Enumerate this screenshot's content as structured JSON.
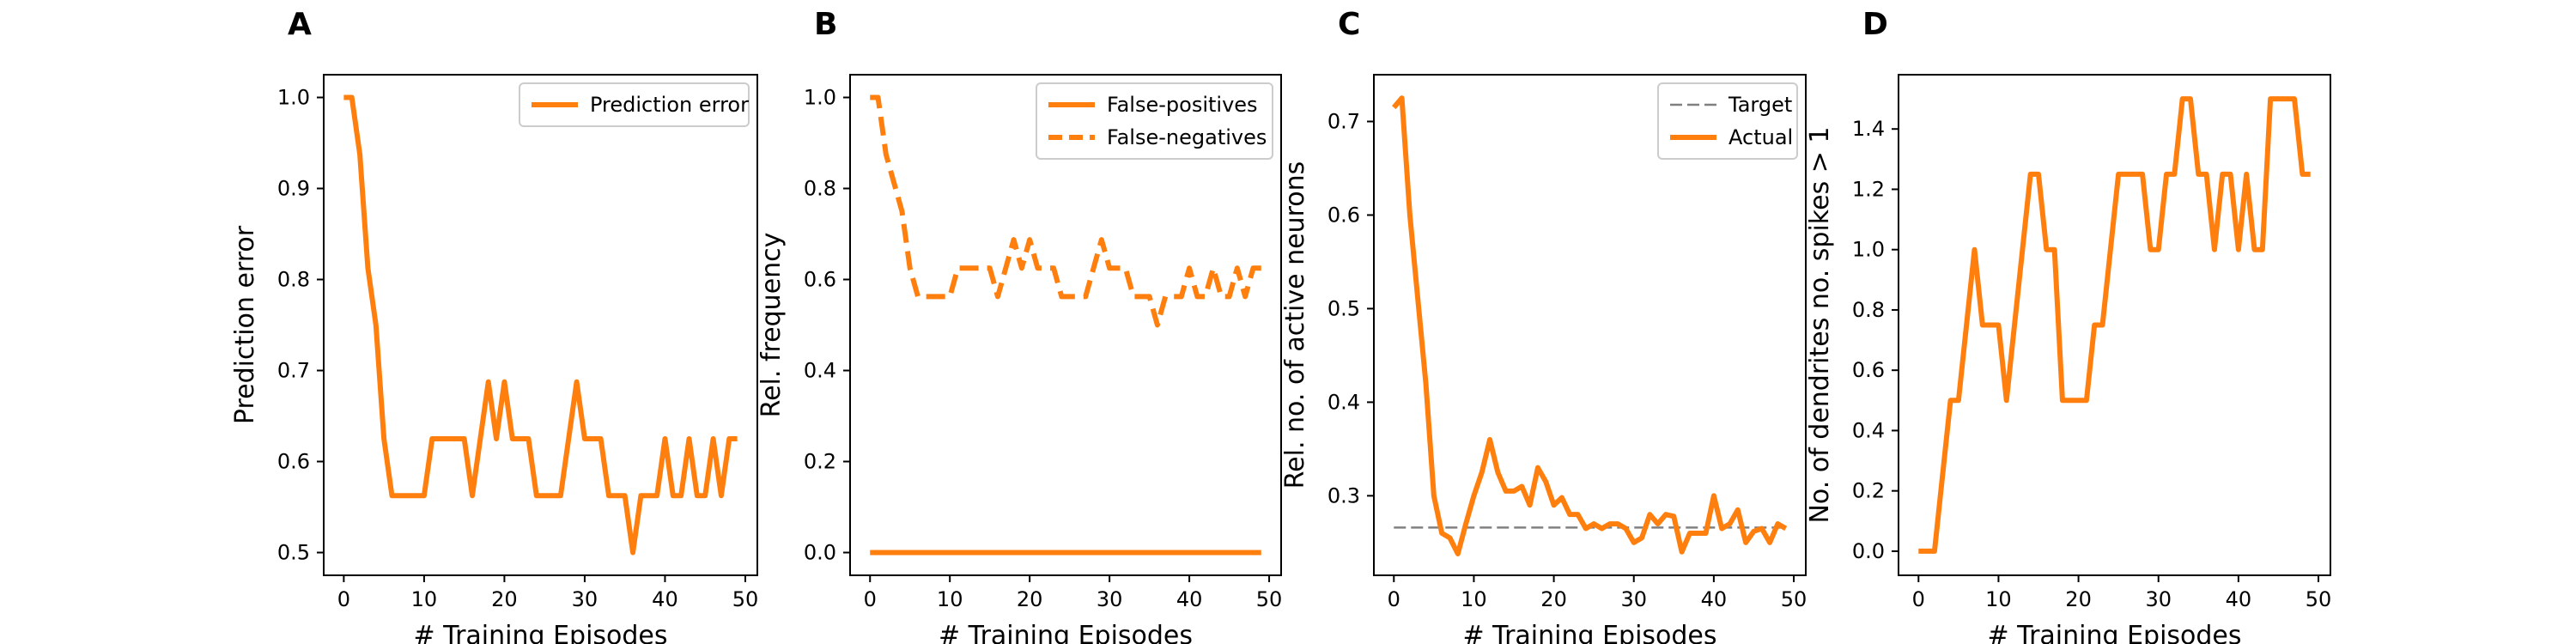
{
  "chart_data": [
    {
      "type": "line",
      "panel_label": "A",
      "xlabel": "# Training Episodes",
      "ylabel": "Prediction error",
      "xlim": [
        -2.5,
        51.5
      ],
      "ylim": [
        0.475,
        1.025
      ],
      "xticks": [
        0,
        10,
        20,
        30,
        40,
        50
      ],
      "yticks": [
        0.5,
        0.6,
        0.7,
        0.8,
        0.9,
        1.0
      ],
      "ytick_labels": [
        "0.5",
        "0.6",
        "0.7",
        "0.8",
        "0.9",
        "1.0"
      ],
      "grid": false,
      "legend_position": "top-right",
      "series": [
        {
          "name": "Prediction error",
          "color": "#ff7f0e",
          "style": "solid",
          "x": [
            0,
            1,
            2,
            3,
            4,
            5,
            6,
            7,
            8,
            9,
            10,
            11,
            12,
            13,
            14,
            15,
            16,
            17,
            18,
            19,
            20,
            21,
            22,
            23,
            24,
            25,
            26,
            27,
            28,
            29,
            30,
            31,
            32,
            33,
            34,
            35,
            36,
            37,
            38,
            39,
            40,
            41,
            42,
            43,
            44,
            45,
            46,
            47,
            48,
            49
          ],
          "y": [
            1.0,
            1.0,
            0.9375,
            0.8125,
            0.75,
            0.625,
            0.5625,
            0.5625,
            0.5625,
            0.5625,
            0.5625,
            0.625,
            0.625,
            0.625,
            0.625,
            0.625,
            0.5625,
            0.625,
            0.6875,
            0.625,
            0.6875,
            0.625,
            0.625,
            0.625,
            0.5625,
            0.5625,
            0.5625,
            0.5625,
            0.625,
            0.6875,
            0.625,
            0.625,
            0.625,
            0.5625,
            0.5625,
            0.5625,
            0.5,
            0.5625,
            0.5625,
            0.5625,
            0.625,
            0.5625,
            0.5625,
            0.625,
            0.5625,
            0.5625,
            0.625,
            0.5625,
            0.625,
            0.625
          ]
        }
      ]
    },
    {
      "type": "line",
      "panel_label": "B",
      "xlabel": "# Training Episodes",
      "ylabel": "Rel. frequency",
      "xlim": [
        -2.5,
        51.5
      ],
      "ylim": [
        -0.05,
        1.05
      ],
      "xticks": [
        0,
        10,
        20,
        30,
        40,
        50
      ],
      "yticks": [
        0.0,
        0.2,
        0.4,
        0.6,
        0.8,
        1.0
      ],
      "ytick_labels": [
        "0.0",
        "0.2",
        "0.4",
        "0.6",
        "0.8",
        "1.0"
      ],
      "grid": false,
      "legend_position": "top-right",
      "series": [
        {
          "name": "False-positives",
          "color": "#ff7f0e",
          "style": "solid",
          "x": [
            0,
            1,
            2,
            3,
            4,
            5,
            6,
            7,
            8,
            9,
            10,
            11,
            12,
            13,
            14,
            15,
            16,
            17,
            18,
            19,
            20,
            21,
            22,
            23,
            24,
            25,
            26,
            27,
            28,
            29,
            30,
            31,
            32,
            33,
            34,
            35,
            36,
            37,
            38,
            39,
            40,
            41,
            42,
            43,
            44,
            45,
            46,
            47,
            48,
            49
          ],
          "y": [
            0,
            0,
            0,
            0,
            0,
            0,
            0,
            0,
            0,
            0,
            0,
            0,
            0,
            0,
            0,
            0,
            0,
            0,
            0,
            0,
            0,
            0,
            0,
            0,
            0,
            0,
            0,
            0,
            0,
            0,
            0,
            0,
            0,
            0,
            0,
            0,
            0,
            0,
            0,
            0,
            0,
            0,
            0,
            0,
            0,
            0,
            0,
            0,
            0,
            0
          ]
        },
        {
          "name": "False-negatives",
          "color": "#ff7f0e",
          "style": "dashed",
          "x": [
            0,
            1,
            2,
            3,
            4,
            5,
            6,
            7,
            8,
            9,
            10,
            11,
            12,
            13,
            14,
            15,
            16,
            17,
            18,
            19,
            20,
            21,
            22,
            23,
            24,
            25,
            26,
            27,
            28,
            29,
            30,
            31,
            32,
            33,
            34,
            35,
            36,
            37,
            38,
            39,
            40,
            41,
            42,
            43,
            44,
            45,
            46,
            47,
            48,
            49
          ],
          "y": [
            1.0,
            1.0,
            0.875,
            0.8125,
            0.75,
            0.625,
            0.5625,
            0.5625,
            0.5625,
            0.5625,
            0.5625,
            0.625,
            0.625,
            0.625,
            0.625,
            0.625,
            0.5625,
            0.625,
            0.6875,
            0.625,
            0.6875,
            0.625,
            0.625,
            0.625,
            0.5625,
            0.5625,
            0.5625,
            0.5625,
            0.625,
            0.6875,
            0.625,
            0.625,
            0.625,
            0.5625,
            0.5625,
            0.5625,
            0.5,
            0.5625,
            0.5625,
            0.5625,
            0.625,
            0.5625,
            0.5625,
            0.625,
            0.5625,
            0.5625,
            0.625,
            0.5625,
            0.625,
            0.625
          ]
        }
      ]
    },
    {
      "type": "line",
      "panel_label": "C",
      "xlabel": "# Training Episodes",
      "ylabel": "Rel. no. of active neurons",
      "xlim": [
        -2.5,
        51.5
      ],
      "ylim": [
        0.215,
        0.75
      ],
      "xticks": [
        0,
        10,
        20,
        30,
        40,
        50
      ],
      "yticks": [
        0.3,
        0.4,
        0.5,
        0.6,
        0.7
      ],
      "ytick_labels": [
        "0.3",
        "0.4",
        "0.5",
        "0.6",
        "0.7"
      ],
      "grid": false,
      "legend_position": "top-right",
      "series": [
        {
          "name": "Target",
          "color": "#808080",
          "style": "dashed",
          "x": [
            0,
            49
          ],
          "y": [
            0.266,
            0.266
          ]
        },
        {
          "name": "Actual",
          "color": "#ff7f0e",
          "style": "solid",
          "x": [
            0,
            1,
            2,
            3,
            4,
            5,
            6,
            7,
            8,
            9,
            10,
            11,
            12,
            13,
            14,
            15,
            16,
            17,
            18,
            19,
            20,
            21,
            22,
            23,
            24,
            25,
            26,
            27,
            28,
            29,
            30,
            31,
            32,
            33,
            34,
            35,
            36,
            37,
            38,
            39,
            40,
            41,
            42,
            43,
            44,
            45,
            46,
            47,
            48,
            49
          ],
          "y": [
            0.715,
            0.725,
            0.6,
            0.51,
            0.42,
            0.3,
            0.26,
            0.255,
            0.238,
            0.27,
            0.3,
            0.325,
            0.36,
            0.325,
            0.305,
            0.305,
            0.31,
            0.29,
            0.33,
            0.315,
            0.29,
            0.298,
            0.28,
            0.28,
            0.265,
            0.27,
            0.265,
            0.27,
            0.27,
            0.265,
            0.25,
            0.255,
            0.28,
            0.27,
            0.28,
            0.278,
            0.24,
            0.26,
            0.26,
            0.26,
            0.3,
            0.265,
            0.27,
            0.285,
            0.25,
            0.262,
            0.265,
            0.25,
            0.27,
            0.265
          ]
        }
      ]
    },
    {
      "type": "line",
      "panel_label": "D",
      "xlabel": "# Training Episodes",
      "ylabel": "No. of dendrites no. spikes > 1",
      "xlim": [
        -2.5,
        51.5
      ],
      "ylim": [
        -0.08,
        1.58
      ],
      "xticks": [
        0,
        10,
        20,
        30,
        40,
        50
      ],
      "yticks": [
        0.0,
        0.2,
        0.4,
        0.6,
        0.8,
        1.0,
        1.2,
        1.4
      ],
      "ytick_labels": [
        "0.0",
        "0.2",
        "0.4",
        "0.6",
        "0.8",
        "1.0",
        "1.2",
        "1.4"
      ],
      "grid": false,
      "series": [
        {
          "color": "#ff7f0e",
          "style": "solid",
          "x": [
            0,
            1,
            2,
            3,
            4,
            5,
            6,
            7,
            8,
            9,
            10,
            11,
            12,
            13,
            14,
            15,
            16,
            17,
            18,
            19,
            20,
            21,
            22,
            23,
            24,
            25,
            26,
            27,
            28,
            29,
            30,
            31,
            32,
            33,
            34,
            35,
            36,
            37,
            38,
            39,
            40,
            41,
            42,
            43,
            44,
            45,
            46,
            47,
            48,
            49
          ],
          "y": [
            0,
            0,
            0,
            0.25,
            0.5,
            0.5,
            0.75,
            1.0,
            0.75,
            0.75,
            0.75,
            0.5,
            0.75,
            1.0,
            1.25,
            1.25,
            1.0,
            1.0,
            0.5,
            0.5,
            0.5,
            0.5,
            0.75,
            0.75,
            1.0,
            1.25,
            1.25,
            1.25,
            1.25,
            1.0,
            1.0,
            1.25,
            1.25,
            1.5,
            1.5,
            1.25,
            1.25,
            1.0,
            1.25,
            1.25,
            1.0,
            1.25,
            1.0,
            1.0,
            1.5,
            1.5,
            1.5,
            1.5,
            1.25,
            1.25
          ]
        }
      ]
    }
  ]
}
